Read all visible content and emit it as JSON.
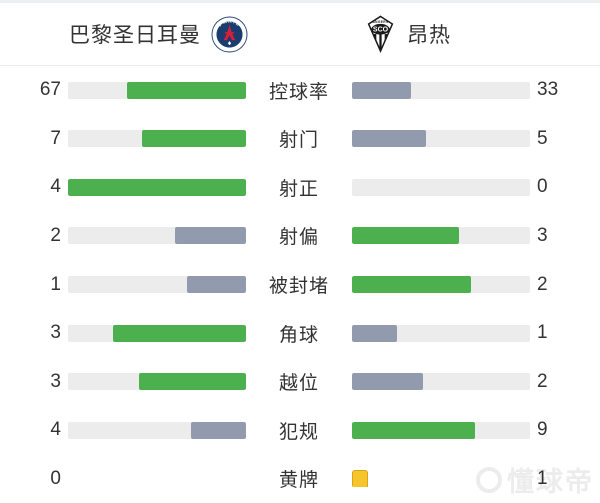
{
  "header": {
    "home_team": {
      "name": "巴黎圣日耳曼",
      "logo": "psg-crest",
      "logo_text": "PARIS"
    },
    "away_team": {
      "name": "昂热",
      "logo": "sco-angers-crest",
      "logo_text_top": "ANGERS",
      "logo_text_main": "SCO"
    }
  },
  "colors": {
    "win_bar": "#4cb04f",
    "lose_bar": "#919bad",
    "bar_track": "#ececec",
    "yellow_card_fill": "#f6c52e",
    "yellow_card_border": "#dca313",
    "text": "#333333"
  },
  "chart_data": {
    "type": "bar",
    "title": "巴黎圣日耳曼 vs 昂热",
    "categories": [
      "控球率",
      "射门",
      "射正",
      "射偏",
      "被封堵",
      "角球",
      "越位",
      "犯规",
      "黄牌"
    ],
    "series": [
      {
        "name": "巴黎圣日耳曼",
        "values": [
          67,
          7,
          4,
          2,
          1,
          3,
          3,
          4,
          0
        ]
      },
      {
        "name": "昂热",
        "values": [
          33,
          5,
          0,
          3,
          2,
          1,
          2,
          9,
          1
        ]
      }
    ]
  },
  "stats": [
    {
      "label": "控球率",
      "home": 67,
      "away": 33,
      "type": "bar"
    },
    {
      "label": "射门",
      "home": 7,
      "away": 5,
      "type": "bar"
    },
    {
      "label": "射正",
      "home": 4,
      "away": 0,
      "type": "bar"
    },
    {
      "label": "射偏",
      "home": 2,
      "away": 3,
      "type": "bar"
    },
    {
      "label": "被封堵",
      "home": 1,
      "away": 2,
      "type": "bar"
    },
    {
      "label": "角球",
      "home": 3,
      "away": 1,
      "type": "bar"
    },
    {
      "label": "越位",
      "home": 3,
      "away": 2,
      "type": "bar"
    },
    {
      "label": "犯规",
      "home": 4,
      "away": 9,
      "type": "bar"
    },
    {
      "label": "黄牌",
      "home": 0,
      "away": 1,
      "type": "card"
    }
  ],
  "watermark": "懂球帝"
}
